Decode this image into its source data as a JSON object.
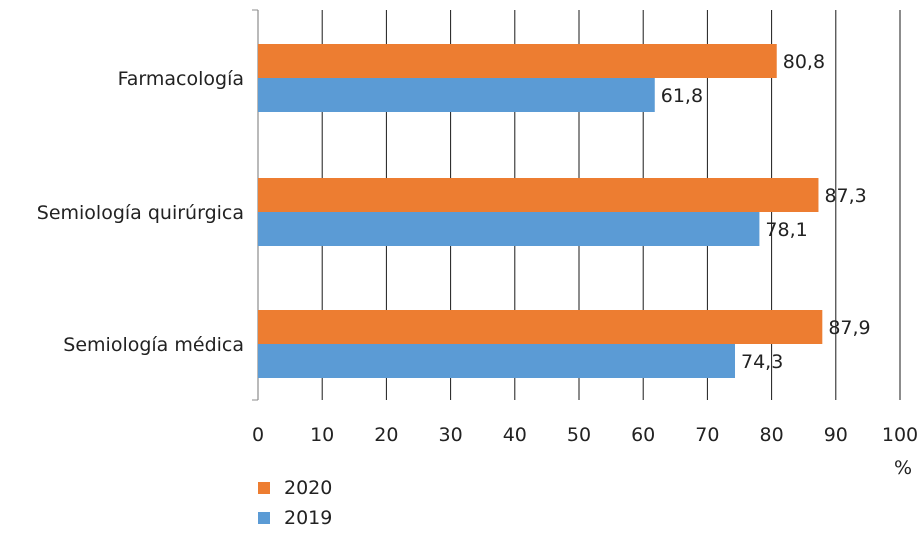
{
  "chart_data": {
    "type": "bar",
    "orientation": "horizontal",
    "categories": [
      "Farmacología",
      "Semiología quirúrgica",
      "Semiología médica"
    ],
    "series": [
      {
        "name": "2020",
        "color": "#ED7D31",
        "values": [
          80.8,
          87.3,
          87.9
        ],
        "labels": [
          "80,8",
          "87,3",
          "87,9"
        ]
      },
      {
        "name": "2019",
        "color": "#5B9BD5",
        "values": [
          61.8,
          78.1,
          74.3
        ],
        "labels": [
          "61,8",
          "78,1",
          "74,3"
        ]
      }
    ],
    "xlim": [
      0,
      100
    ],
    "x_ticks": [
      "0",
      "10",
      "20",
      "30",
      "40",
      "50",
      "60",
      "70",
      "80",
      "90",
      "100"
    ],
    "xunit": "%",
    "grid": true,
    "legend_position": "bottom-left"
  }
}
